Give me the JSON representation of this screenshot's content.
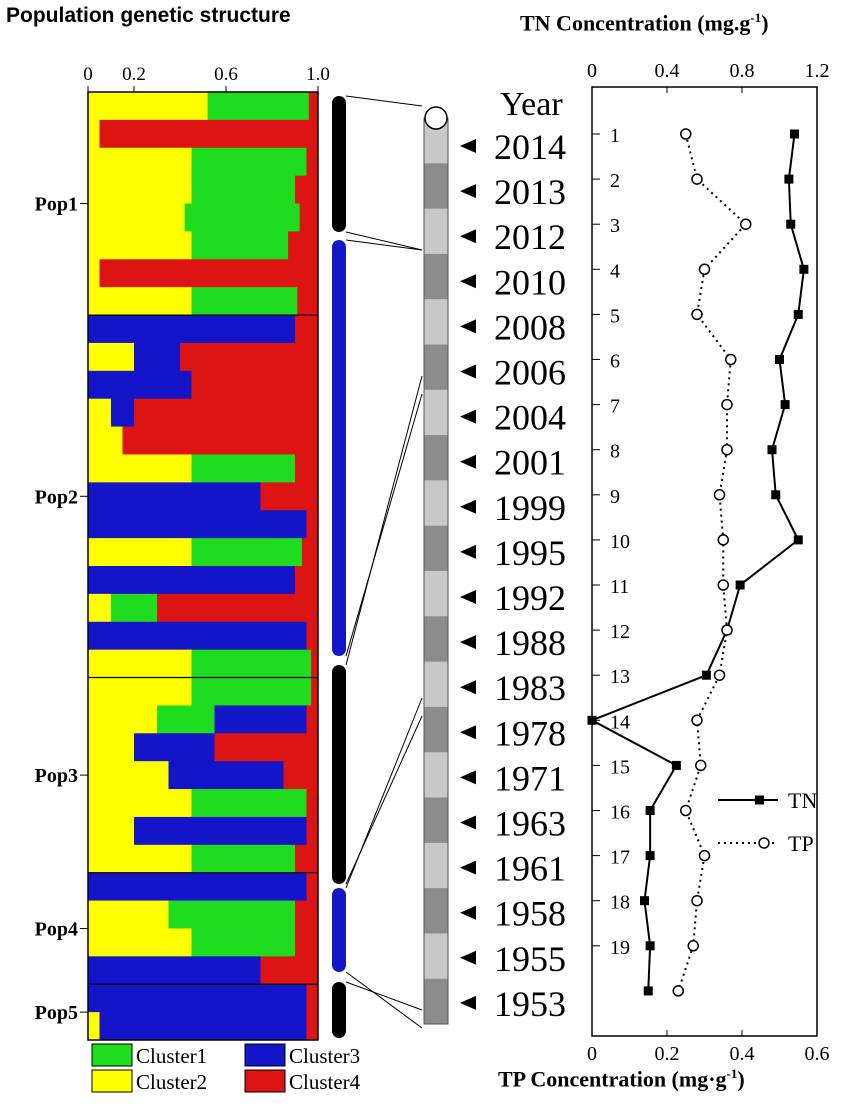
{
  "structure_title": "Population genetic structure",
  "structure_axis_ticks": [
    "0",
    "0.2",
    "0.6",
    "1.0"
  ],
  "populations": [
    "Pop1",
    "Pop2",
    "Pop3",
    "Pop4",
    "Pop5"
  ],
  "clusters": [
    {
      "name": "Cluster1",
      "color": "#1fdc1f"
    },
    {
      "name": "Cluster2",
      "color": "#ffff00"
    },
    {
      "name": "Cluster3",
      "color": "#1414c8"
    },
    {
      "name": "Cluster4",
      "color": "#dc1414"
    }
  ],
  "tn_axis_title_prefix": "TN Concentration (mg.g",
  "tn_axis_title_sup": "-1",
  "tn_axis_title_suffix": ")",
  "tp_axis_title": "TP Concentration (mg·g",
  "tp_axis_title_sup": "-1",
  "tp_axis_title_suffix": ")",
  "year_header": "Year",
  "layers": [
    "1",
    "2",
    "3",
    "4",
    "5",
    "6",
    "7",
    "8",
    "9",
    "10",
    "11",
    "12",
    "13",
    "14",
    "15",
    "16",
    "17",
    "18",
    "19"
  ],
  "legend": {
    "tn": "TN",
    "tp": "TP"
  },
  "chart_data": [
    {
      "type": "bar",
      "orientation": "horizontal-stacked",
      "title": "Population genetic structure",
      "xlim": [
        0,
        1.0
      ],
      "x_tick_labels": [
        "0",
        "0.2",
        "0.6",
        "1.0"
      ],
      "legend": [
        "Cluster1",
        "Cluster2",
        "Cluster3",
        "Cluster4"
      ],
      "populations": [
        {
          "name": "Pop1",
          "rows": [
            {
              "Cluster2": 0.52,
              "Cluster1": 0.44,
              "Cluster3": 0.0,
              "Cluster4": 0.04
            },
            {
              "Cluster2": 0.05,
              "Cluster1": 0.0,
              "Cluster3": 0.0,
              "Cluster4": 0.95
            },
            {
              "Cluster2": 0.45,
              "Cluster1": 0.5,
              "Cluster3": 0.0,
              "Cluster4": 0.05
            },
            {
              "Cluster2": 0.45,
              "Cluster1": 0.45,
              "Cluster3": 0.0,
              "Cluster4": 0.1
            },
            {
              "Cluster2": 0.42,
              "Cluster1": 0.5,
              "Cluster3": 0.0,
              "Cluster4": 0.08
            },
            {
              "Cluster2": 0.45,
              "Cluster1": 0.42,
              "Cluster3": 0.0,
              "Cluster4": 0.13
            },
            {
              "Cluster2": 0.05,
              "Cluster1": 0.0,
              "Cluster3": 0.0,
              "Cluster4": 0.95
            },
            {
              "Cluster2": 0.45,
              "Cluster1": 0.46,
              "Cluster3": 0.0,
              "Cluster4": 0.09
            }
          ]
        },
        {
          "name": "Pop2",
          "rows": [
            {
              "Cluster2": 0.0,
              "Cluster1": 0.0,
              "Cluster3": 0.9,
              "Cluster4": 0.1
            },
            {
              "Cluster2": 0.2,
              "Cluster1": 0.0,
              "Cluster3": 0.2,
              "Cluster4": 0.6
            },
            {
              "Cluster2": 0.0,
              "Cluster1": 0.0,
              "Cluster3": 0.45,
              "Cluster4": 0.55
            },
            {
              "Cluster2": 0.1,
              "Cluster1": 0.0,
              "Cluster3": 0.1,
              "Cluster4": 0.8
            },
            {
              "Cluster2": 0.15,
              "Cluster1": 0.0,
              "Cluster3": 0.0,
              "Cluster4": 0.85
            },
            {
              "Cluster2": 0.45,
              "Cluster1": 0.45,
              "Cluster3": 0.0,
              "Cluster4": 0.1
            },
            {
              "Cluster2": 0.0,
              "Cluster1": 0.0,
              "Cluster3": 0.75,
              "Cluster4": 0.25
            },
            {
              "Cluster2": 0.0,
              "Cluster1": 0.0,
              "Cluster3": 0.95,
              "Cluster4": 0.05
            },
            {
              "Cluster2": 0.45,
              "Cluster1": 0.48,
              "Cluster3": 0.0,
              "Cluster4": 0.07
            },
            {
              "Cluster2": 0.0,
              "Cluster1": 0.0,
              "Cluster3": 0.9,
              "Cluster4": 0.1
            },
            {
              "Cluster2": 0.1,
              "Cluster1": 0.2,
              "Cluster3": 0.0,
              "Cluster4": 0.7
            },
            {
              "Cluster2": 0.0,
              "Cluster1": 0.0,
              "Cluster3": 0.95,
              "Cluster4": 0.05
            },
            {
              "Cluster2": 0.45,
              "Cluster1": 0.52,
              "Cluster3": 0.0,
              "Cluster4": 0.03
            }
          ]
        },
        {
          "name": "Pop3",
          "rows": [
            {
              "Cluster2": 0.45,
              "Cluster1": 0.52,
              "Cluster3": 0.0,
              "Cluster4": 0.03
            },
            {
              "Cluster2": 0.3,
              "Cluster1": 0.25,
              "Cluster3": 0.4,
              "Cluster4": 0.05
            },
            {
              "Cluster2": 0.2,
              "Cluster1": 0.0,
              "Cluster3": 0.35,
              "Cluster4": 0.45
            },
            {
              "Cluster2": 0.35,
              "Cluster1": 0.0,
              "Cluster3": 0.5,
              "Cluster4": 0.15
            },
            {
              "Cluster2": 0.45,
              "Cluster1": 0.5,
              "Cluster3": 0.0,
              "Cluster4": 0.05
            },
            {
              "Cluster2": 0.2,
              "Cluster1": 0.0,
              "Cluster3": 0.75,
              "Cluster4": 0.05
            },
            {
              "Cluster2": 0.45,
              "Cluster1": 0.45,
              "Cluster3": 0.0,
              "Cluster4": 0.1
            }
          ]
        },
        {
          "name": "Pop4",
          "rows": [
            {
              "Cluster2": 0.0,
              "Cluster1": 0.0,
              "Cluster3": 0.95,
              "Cluster4": 0.05
            },
            {
              "Cluster2": 0.35,
              "Cluster1": 0.55,
              "Cluster3": 0.0,
              "Cluster4": 0.1
            },
            {
              "Cluster2": 0.45,
              "Cluster1": 0.45,
              "Cluster3": 0.0,
              "Cluster4": 0.1
            },
            {
              "Cluster2": 0.0,
              "Cluster1": 0.0,
              "Cluster3": 0.75,
              "Cluster4": 0.25
            }
          ]
        },
        {
          "name": "Pop5",
          "rows": [
            {
              "Cluster2": 0.0,
              "Cluster1": 0.0,
              "Cluster3": 0.95,
              "Cluster4": 0.05
            },
            {
              "Cluster2": 0.05,
              "Cluster1": 0.0,
              "Cluster3": 0.9,
              "Cluster4": 0.05
            }
          ]
        }
      ]
    },
    {
      "type": "line",
      "orientation": "vertical-profile",
      "title": "TN Concentration (mg.g-1) / TP Concentration (mg·g-1)",
      "y_label": "Year",
      "categories": [
        "2014",
        "2013",
        "2012",
        "2010",
        "2008",
        "2006",
        "2004",
        "2001",
        "1999",
        "1995",
        "1992",
        "1988",
        "1983",
        "1978",
        "1971",
        "1963",
        "1961",
        "1958",
        "1955",
        "1953"
      ],
      "series": [
        {
          "name": "TN",
          "axis": "top",
          "xlim": [
            0,
            1.2
          ],
          "x_ticks": [
            "0",
            "0.4",
            "0.8",
            "1.2"
          ],
          "values": [
            1.08,
            1.05,
            1.06,
            1.13,
            1.1,
            1.0,
            1.03,
            0.96,
            0.98,
            1.1,
            0.79,
            0.72,
            0.61,
            0.0,
            0.45,
            0.31,
            0.31,
            0.28,
            0.31,
            0.3
          ]
        },
        {
          "name": "TP",
          "axis": "bottom",
          "xlim": [
            0,
            0.6
          ],
          "x_ticks": [
            "0",
            "0.2",
            "0.4",
            "0.6"
          ],
          "values": [
            0.25,
            0.28,
            0.41,
            0.3,
            0.28,
            0.37,
            0.36,
            0.36,
            0.34,
            0.35,
            0.35,
            0.36,
            0.34,
            0.28,
            0.29,
            0.25,
            0.3,
            0.28,
            0.27,
            0.23
          ]
        }
      ]
    }
  ]
}
